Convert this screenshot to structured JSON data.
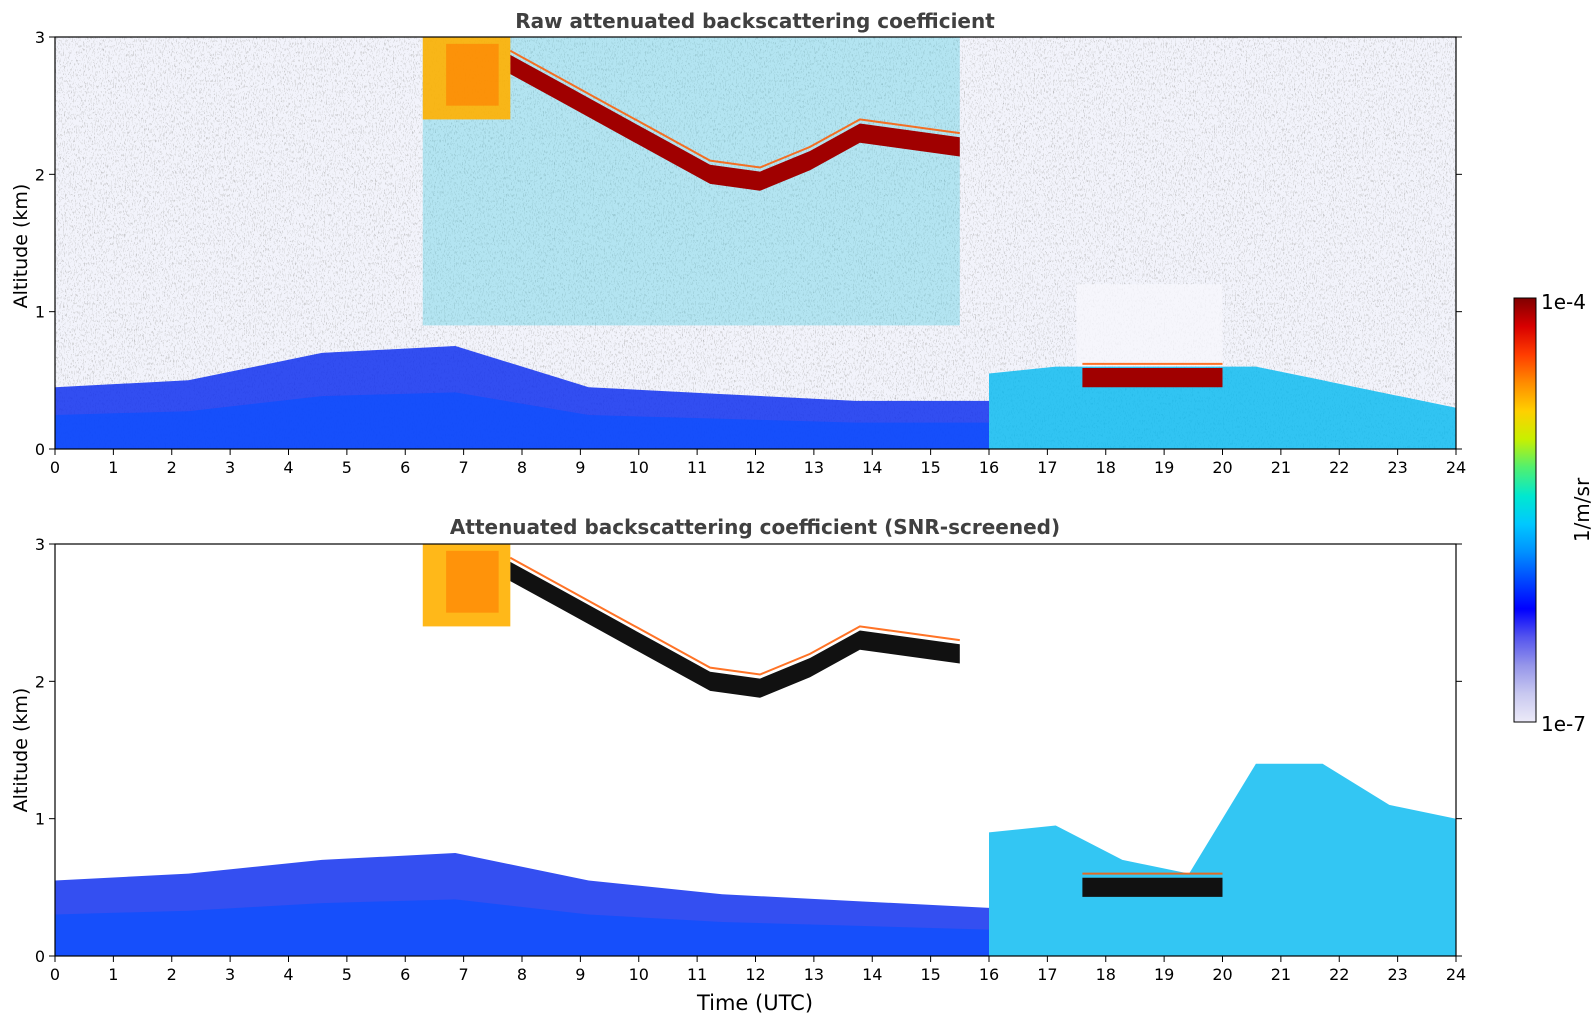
{
  "chart_data": [
    {
      "type": "heatmap",
      "title": "Raw attenuated backscattering coefficient",
      "xlabel": "",
      "ylabel": "Altitude (km)",
      "xlim": [
        0,
        24
      ],
      "ylim": [
        0,
        3
      ],
      "xticks": [
        "0",
        "1",
        "2",
        "3",
        "4",
        "5",
        "6",
        "7",
        "8",
        "9",
        "10",
        "11",
        "12",
        "13",
        "14",
        "15",
        "16",
        "17",
        "18",
        "19",
        "20",
        "21",
        "22",
        "23",
        "24"
      ],
      "yticks": [
        "0",
        "1",
        "2",
        "3"
      ],
      "features": [
        {
          "label": "boundary-layer aerosol",
          "x": [
            0,
            16
          ],
          "alt_top": [
            0.45,
            0.5,
            0.7,
            0.75,
            0.45,
            0.4,
            0.35,
            0.35
          ],
          "level": "low"
        },
        {
          "label": "elevated layer 16-24h",
          "x": [
            16,
            24
          ],
          "alt_top": [
            0.55,
            0.6,
            0.6,
            0.6,
            0.6,
            0.5,
            0.4,
            0.3
          ],
          "level": "medium"
        },
        {
          "label": "cloud layer",
          "x": [
            17.6,
            20.0
          ],
          "alt_mid": 0.52,
          "level": "high"
        },
        {
          "label": "upper cloud",
          "x": [
            7.8,
            15.5
          ],
          "alt_mid": [
            2.8,
            2.6,
            2.4,
            2.2,
            2.0,
            1.95,
            2.1,
            2.3,
            2.25,
            2.2
          ],
          "level": "high"
        },
        {
          "label": "upper aerosol",
          "x": [
            6.3,
            7.8
          ],
          "alt_range": [
            2.4,
            3.0
          ],
          "level": "medium-high"
        }
      ]
    },
    {
      "type": "heatmap",
      "title": "Attenuated backscattering coefficient (SNR-screened)",
      "xlabel": "Time (UTC)",
      "ylabel": "Altitude (km)",
      "xlim": [
        0,
        24
      ],
      "ylim": [
        0,
        3
      ],
      "xticks": [
        "0",
        "1",
        "2",
        "3",
        "4",
        "5",
        "6",
        "7",
        "8",
        "9",
        "10",
        "11",
        "12",
        "13",
        "14",
        "15",
        "16",
        "17",
        "18",
        "19",
        "20",
        "21",
        "22",
        "23",
        "24"
      ],
      "yticks": [
        "0",
        "1",
        "2",
        "3"
      ],
      "features": [
        {
          "label": "boundary-layer aerosol",
          "x": [
            0,
            16
          ],
          "alt_top": [
            0.55,
            0.6,
            0.7,
            0.75,
            0.55,
            0.45,
            0.4,
            0.35
          ],
          "level": "low"
        },
        {
          "label": "elevated layer 16-24h",
          "x": [
            16,
            24
          ],
          "alt_top": [
            0.9,
            0.95,
            0.7,
            0.6,
            1.4,
            1.4,
            1.1,
            1.0
          ],
          "level": "medium"
        },
        {
          "label": "cloud layer",
          "x": [
            17.6,
            20.0
          ],
          "alt_mid": 0.5,
          "level": "saturated"
        },
        {
          "label": "upper cloud",
          "x": [
            7.8,
            15.5
          ],
          "alt_mid": [
            2.8,
            2.6,
            2.4,
            2.2,
            2.0,
            1.95,
            2.1,
            2.3,
            2.25,
            2.2
          ],
          "level": "saturated"
        },
        {
          "label": "upper aerosol",
          "x": [
            6.3,
            7.8
          ],
          "alt_range": [
            2.4,
            3.0
          ],
          "level": "medium-high"
        }
      ]
    }
  ],
  "colorbar": {
    "label": "1/m/sr",
    "max_label": "1e-4",
    "min_label": "1e-7",
    "colors": [
      "#eceaf8",
      "#c8c8f0",
      "#9696ea",
      "#5555ee",
      "#0000ff",
      "#0046ff",
      "#0090ff",
      "#00c8ff",
      "#00e8d0",
      "#50f070",
      "#c8f000",
      "#ffd000",
      "#ff8c00",
      "#ff3c00",
      "#d80000",
      "#800000"
    ]
  }
}
